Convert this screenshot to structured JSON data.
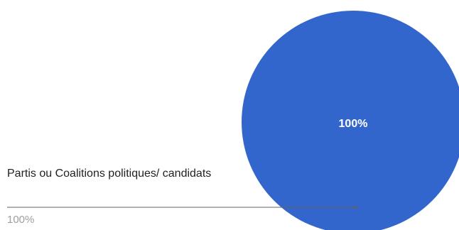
{
  "chart_data": {
    "type": "pie",
    "title": "",
    "legend": "none",
    "slices": [
      {
        "label": "Partis ou Coalitions politiques/ candidats",
        "value": 100,
        "percent_label": "100%",
        "color": "#3366cc"
      }
    ]
  },
  "colors": {
    "slice": "#3366cc",
    "slice_label_text": "#ffffff",
    "callout_line": "#616161",
    "callout_text": "#222222",
    "callout_value_text": "#9e9e9e"
  }
}
